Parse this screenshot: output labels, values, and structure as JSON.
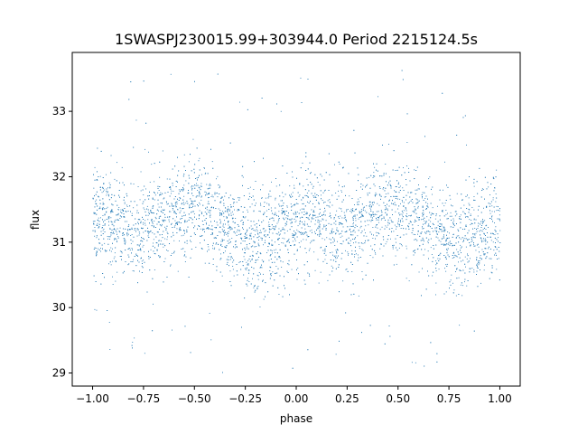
{
  "chart_data": {
    "type": "scatter",
    "title": "1SWASPJ230015.99+303944.0 Period 2215124.5s",
    "xlabel": "phase",
    "ylabel": "flux",
    "xlim": [
      -1.1,
      1.1
    ],
    "ylim": [
      28.8,
      33.9
    ],
    "xticks": [
      -1.0,
      -0.75,
      -0.5,
      -0.25,
      0.0,
      0.25,
      0.5,
      0.75,
      1.0
    ],
    "xtick_labels": [
      "−1.00",
      "−0.75",
      "−0.50",
      "−0.25",
      "0.00",
      "0.25",
      "0.50",
      "0.75",
      "1.00"
    ],
    "yticks": [
      29,
      30,
      31,
      32,
      33
    ],
    "ytick_labels": [
      "29",
      "30",
      "31",
      "32",
      "33"
    ],
    "grid": false,
    "marker_color": "#1f77b4",
    "series": [
      {
        "note_only_for_rendering": "dense folded light curve, mirrored over phase -1..1",
        "phase_profile": [
          [
            -1.0,
            31.4
          ],
          [
            -0.9,
            31.3
          ],
          [
            -0.8,
            31.15
          ],
          [
            -0.7,
            31.3
          ],
          [
            -0.6,
            31.5
          ],
          [
            -0.5,
            31.55
          ],
          [
            -0.4,
            31.35
          ],
          [
            -0.3,
            31.1
          ],
          [
            -0.2,
            31.0
          ],
          [
            -0.1,
            31.1
          ],
          [
            0.0,
            31.35
          ],
          [
            0.1,
            31.3
          ],
          [
            0.2,
            31.15
          ],
          [
            0.3,
            31.3
          ],
          [
            0.4,
            31.5
          ],
          [
            0.5,
            31.55
          ],
          [
            0.6,
            31.35
          ],
          [
            0.7,
            31.1
          ],
          [
            0.8,
            31.0
          ],
          [
            0.9,
            31.1
          ],
          [
            1.0,
            31.3
          ]
        ],
        "scatter_sigma": 0.38
      }
    ]
  }
}
